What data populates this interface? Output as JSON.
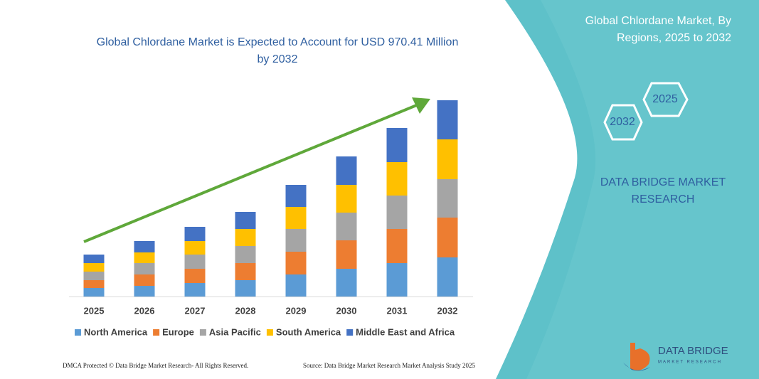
{
  "chart_data": {
    "type": "stacked_bar",
    "title": "Global Chlordane Market is Expected to Account for USD 970.41 Million by 2032",
    "categories": [
      "2025",
      "2026",
      "2027",
      "2028",
      "2029",
      "2030",
      "2031",
      "2032"
    ],
    "series": [
      {
        "name": "North America",
        "color": "#5b9bd5",
        "values": [
          12,
          15,
          19,
          23,
          31,
          39,
          47,
          55
        ]
      },
      {
        "name": "Europe",
        "color": "#ed7d31",
        "values": [
          11,
          16,
          20,
          24,
          32,
          40,
          48,
          56
        ]
      },
      {
        "name": "Asia Pacific",
        "color": "#a5a5a5",
        "values": [
          12,
          16,
          20,
          24,
          32,
          39,
          47,
          54
        ]
      },
      {
        "name": "South America",
        "color": "#ffc000",
        "values": [
          12,
          15,
          19,
          24,
          31,
          39,
          47,
          56
        ]
      },
      {
        "name": "Middle East and Africa",
        "color": "#4472c4",
        "values": [
          12,
          16,
          20,
          24,
          31,
          40,
          48,
          55
        ]
      }
    ],
    "ylim": [
      0,
      300
    ]
  },
  "panel": {
    "title": "Global Chlordane Market, By Regions, 2025 to 2032",
    "hex_years": [
      "2025",
      "2032"
    ],
    "brand": "DATA BRIDGE MARKET RESEARCH"
  },
  "logo": {
    "name": "DATA BRIDGE",
    "sub": "MARKET RESEARCH"
  },
  "footer": {
    "left": "DMCA Protected © Data Bridge Market Research- All Rights Reserved.",
    "right": "Source: Data Bridge Market Research Market Analysis Study 2025"
  }
}
